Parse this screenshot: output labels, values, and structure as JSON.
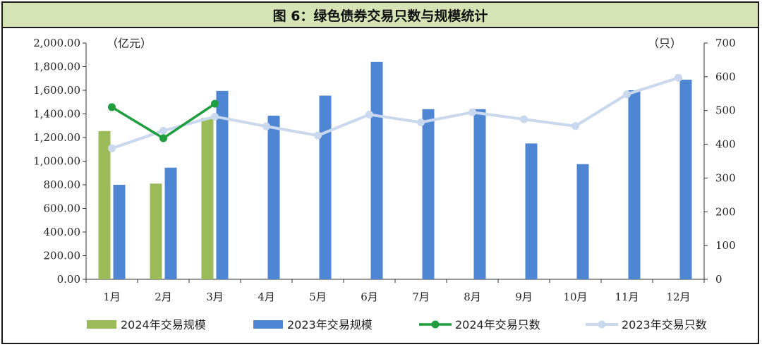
{
  "title": "图 6：绿色债券交易只数与规模统计",
  "colors": {
    "bar2024": "#9bbb59",
    "bar2023": "#4f86d4",
    "line2024": "#1e9e3e",
    "line2023": "#c9d8ec",
    "title_bg": "#d6e3b5"
  },
  "chart_data": {
    "type": "bar",
    "categories": [
      "1月",
      "2月",
      "3月",
      "4月",
      "5月",
      "6月",
      "7月",
      "8月",
      "9月",
      "10月",
      "11月",
      "12月"
    ],
    "y_left": {
      "unit": "（亿元）",
      "range": [
        0,
        2000
      ],
      "ticks": [
        "0.00",
        "200.00",
        "400.00",
        "600.00",
        "800.00",
        "1,000.00",
        "1,200.00",
        "1,400.00",
        "1,600.00",
        "1,800.00",
        "2,000.00"
      ]
    },
    "y_right": {
      "unit": "（只）",
      "range": [
        0,
        700
      ],
      "ticks": [
        "0",
        "100",
        "200",
        "300",
        "400",
        "500",
        "600",
        "700"
      ]
    },
    "series": [
      {
        "name": "2024年交易规模",
        "type": "bar",
        "axis": "left",
        "values": [
          1255,
          810,
          1365,
          null,
          null,
          null,
          null,
          null,
          null,
          null,
          null,
          null
        ]
      },
      {
        "name": "2023年交易规模",
        "type": "bar",
        "axis": "left",
        "values": [
          800,
          945,
          1595,
          1385,
          1555,
          1840,
          1440,
          1440,
          1150,
          975,
          1600,
          1690
        ]
      },
      {
        "name": "2024年交易只数",
        "type": "line",
        "axis": "right",
        "values": [
          510,
          418,
          520,
          null,
          null,
          null,
          null,
          null,
          null,
          null,
          null,
          null
        ]
      },
      {
        "name": "2023年交易只数",
        "type": "line",
        "axis": "right",
        "values": [
          388,
          440,
          482,
          453,
          426,
          488,
          465,
          495,
          474,
          454,
          548,
          597
        ]
      }
    ],
    "grid": false,
    "legend_position": "bottom"
  }
}
